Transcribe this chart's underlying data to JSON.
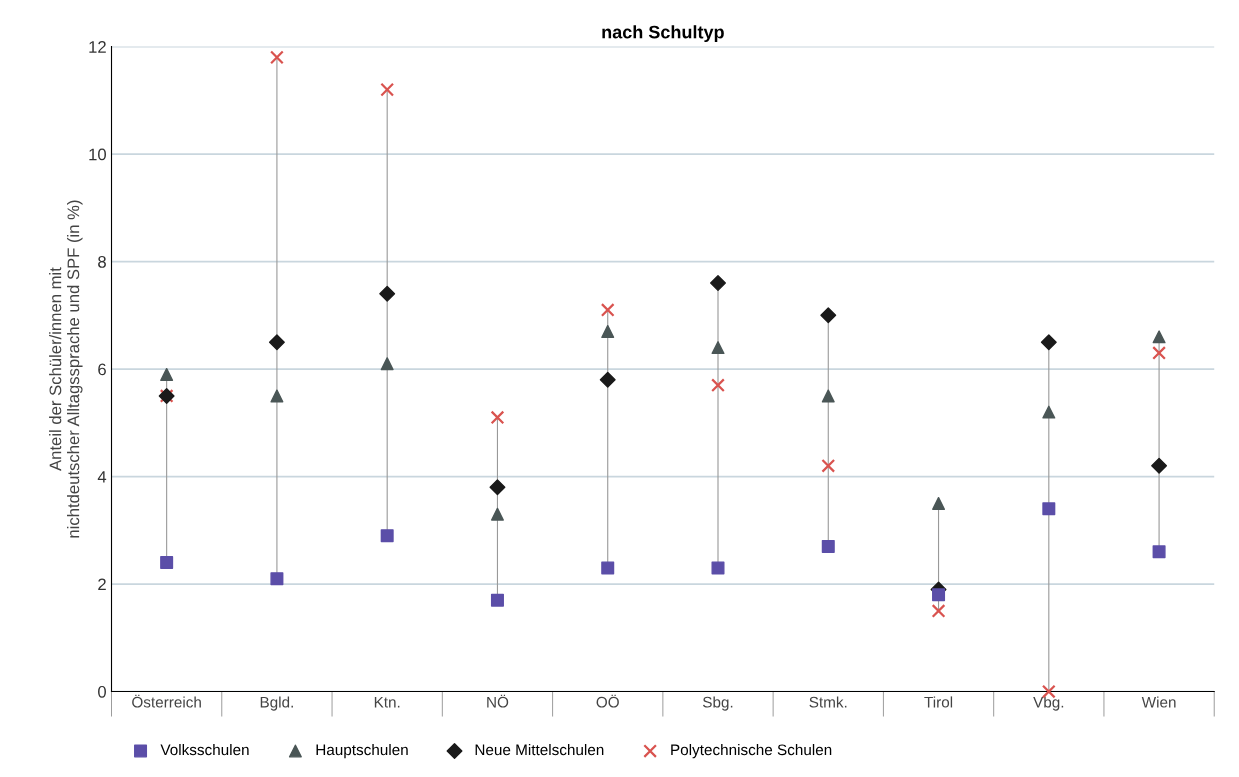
{
  "chart_data": {
    "type": "scatter",
    "title": "nach Schultyp",
    "ylabel": "Anteil der Schüler/innen mit\nnichtdeutscher Alltagssprache und SPF (in %)",
    "categories": [
      "Österreich",
      "Bgld.",
      "Ktn.",
      "NÖ",
      "OÖ",
      "Sbg.",
      "Stmk.",
      "Tirol",
      "Vbg.",
      "Wien"
    ],
    "series": [
      {
        "name": "Volksschulen",
        "color": "#5b4ea8",
        "marker": "square",
        "values": [
          2.4,
          2.1,
          2.9,
          1.7,
          2.3,
          2.3,
          2.7,
          1.8,
          3.4,
          2.6
        ]
      },
      {
        "name": "Hauptschulen",
        "color": "#4a5656",
        "marker": "triangle",
        "values": [
          5.9,
          5.5,
          6.1,
          3.3,
          6.7,
          6.4,
          5.5,
          3.5,
          5.2,
          6.6
        ]
      },
      {
        "name": "Neue Mittelschulen",
        "color": "#1a1a1a",
        "marker": "diamond",
        "values": [
          5.5,
          6.5,
          7.4,
          3.8,
          5.8,
          7.6,
          7.0,
          1.9,
          6.5,
          4.2
        ]
      },
      {
        "name": "Polytechnische Schulen",
        "color": "#d9534f",
        "marker": "cross",
        "values": [
          5.5,
          11.8,
          11.2,
          5.1,
          7.1,
          5.7,
          4.2,
          1.5,
          0,
          6.3
        ]
      }
    ],
    "ylim": [
      0,
      12
    ],
    "yticks": [
      0,
      2,
      4,
      6,
      8,
      10,
      12
    ],
    "grid": "y",
    "legend": "bottom"
  }
}
